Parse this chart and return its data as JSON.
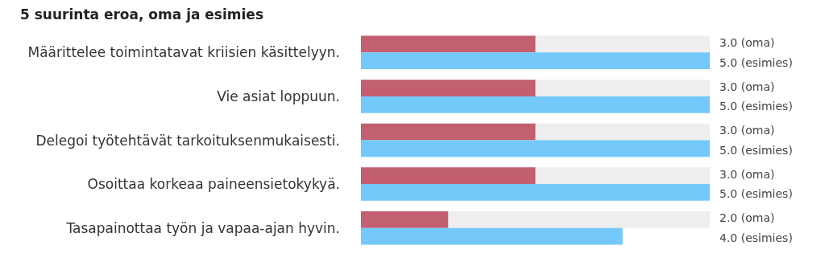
{
  "chart_data": {
    "type": "bar",
    "orientation": "horizontal",
    "title": "5 suurinta eroa, oma ja esimies",
    "categories": [
      "Määrittelee toimintatavat kriisien käsittelyyn.",
      "Vie asiat loppuun.",
      "Delegoi työtehtävät tarkoituksenmukaisesti.",
      "Osoittaa korkeaa paineensietokykyä.",
      "Tasapainottaa työn ja vapaa-ajan hyvin."
    ],
    "xlim": [
      1,
      5
    ],
    "tick_labels": "y",
    "series": [
      {
        "color": "#c25f70",
        "values": [
          3.0,
          3.0,
          3.0,
          3.0,
          2.0
        ],
        "value_labels": [
          "3.0 (oma)",
          "3.0 (oma)",
          "3.0 (oma)",
          "3.0 (oma)",
          "2.0 (oma)"
        ]
      },
      {
        "color": "#74c8fa",
        "values": [
          5.0,
          5.0,
          5.0,
          5.0,
          4.0
        ],
        "value_labels": [
          "5.0 (esimies)",
          "5.0 (esimies)",
          "5.0 (esimies)",
          "5.0 (esimies)",
          "4.0 (esimies)"
        ]
      }
    ]
  }
}
